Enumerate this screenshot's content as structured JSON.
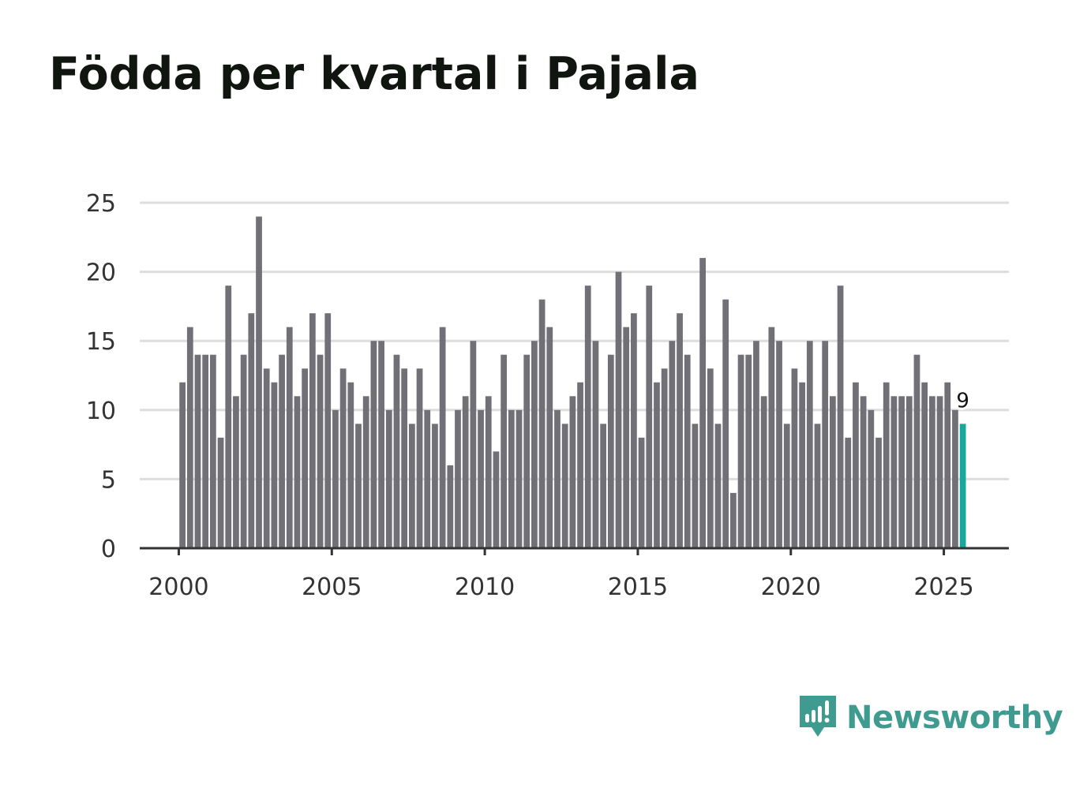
{
  "chart_data": {
    "type": "bar",
    "title": "Födda per kvartal i Pajala",
    "xlabel": "",
    "ylabel": "",
    "ylim": [
      0,
      25
    ],
    "y_ticks": [
      0,
      5,
      10,
      15,
      20,
      25
    ],
    "x_ticks": [
      2000,
      2005,
      2010,
      2015,
      2020,
      2025
    ],
    "x_range": [
      1998.75,
      2027.1
    ],
    "start_year": 2000,
    "periods_per_year": 4,
    "grid": true,
    "bar_color": "#717077",
    "highlight_color": "#17a79b",
    "highlight_label": "9",
    "values": [
      12,
      16,
      14,
      14,
      14,
      8,
      19,
      11,
      14,
      17,
      24,
      13,
      12,
      14,
      16,
      11,
      13,
      17,
      14,
      17,
      10,
      13,
      12,
      9,
      11,
      15,
      15,
      10,
      14,
      13,
      9,
      13,
      10,
      9,
      16,
      6,
      10,
      11,
      15,
      10,
      11,
      7,
      14,
      10,
      10,
      14,
      15,
      18,
      16,
      10,
      9,
      11,
      12,
      19,
      15,
      9,
      14,
      20,
      16,
      17,
      8,
      19,
      12,
      13,
      15,
      17,
      14,
      9,
      21,
      13,
      9,
      18,
      4,
      14,
      14,
      15,
      11,
      16,
      15,
      9,
      13,
      12,
      15,
      9,
      15,
      11,
      19,
      8,
      12,
      11,
      10,
      8,
      12,
      11,
      11,
      11,
      14,
      12,
      11,
      11,
      12,
      10,
      9
    ]
  },
  "brand": {
    "name": "Newsworthy",
    "color": "#3f9a90",
    "icon": "newsworthy-logo-icon"
  }
}
